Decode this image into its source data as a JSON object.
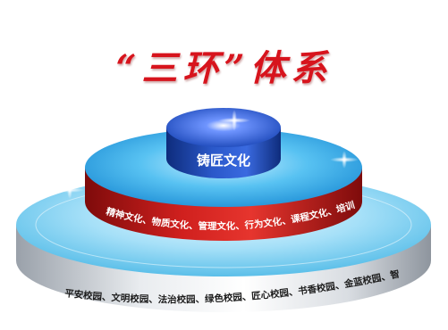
{
  "title": "“三环”体系",
  "tiers": {
    "top": {
      "label": "铸匠文化"
    },
    "middle": {
      "label": "精神文化、物质文化、管理文化、行为文化、课程文化、培训文化"
    },
    "bottom": {
      "label": "平安校园、文明校园、法治校园、绿色校园、匠心校园、书香校园、金蓝校园、智慧校园"
    }
  },
  "colors": {
    "title": "#d7141d",
    "top_ring": "#2c56c8",
    "middle_ring": "#2fa8e6",
    "middle_band": "#c21c1c",
    "bottom_ring": "#8fd6f5",
    "bottom_band": "#c9cdd3"
  }
}
